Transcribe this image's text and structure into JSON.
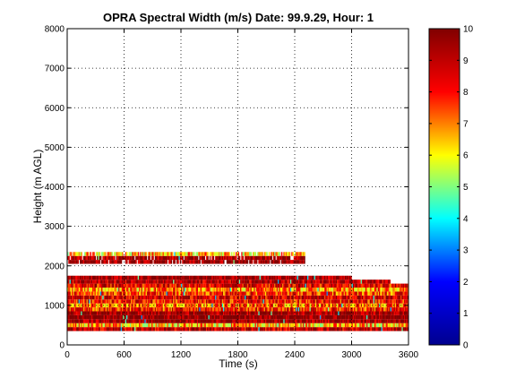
{
  "chart_data": {
    "type": "heatmap",
    "title": "OPRA Spectral Width (m/s)  Date: 99.9.29, Hour: 1",
    "xlabel": "Time (s)",
    "ylabel": "Height (m AGL)",
    "xlim": [
      0,
      3600
    ],
    "ylim": [
      0,
      8000
    ],
    "xticks": [
      "0",
      "600",
      "1200",
      "1800",
      "2400",
      "3000",
      "3600"
    ],
    "yticks": [
      "0",
      "1000",
      "2000",
      "3000",
      "4000",
      "5000",
      "6000",
      "7000",
      "8000"
    ],
    "grid": true,
    "colorbar": {
      "range": [
        0,
        10
      ],
      "ticks": [
        "0",
        "1",
        "2",
        "3",
        "4",
        "5",
        "6",
        "7",
        "8",
        "9",
        "10"
      ],
      "colormap": "jet"
    },
    "colormap_stops": [
      "#00008f",
      "#0000ff",
      "#00ffff",
      "#ffff00",
      "#ff0000",
      "#800000"
    ],
    "layers": [
      {
        "height_m": 400,
        "typical_width_ms": 9.0,
        "coverage": [
          0,
          3600
        ]
      },
      {
        "height_m": 500,
        "typical_width_ms": 6.5,
        "coverage": [
          0,
          3600
        ]
      },
      {
        "height_m": 600,
        "typical_width_ms": 9.6,
        "coverage": [
          0,
          3600
        ]
      },
      {
        "height_m": 700,
        "typical_width_ms": 9.8,
        "coverage": [
          0,
          3600
        ]
      },
      {
        "height_m": 800,
        "typical_width_ms": 9.5,
        "coverage": [
          0,
          3600
        ]
      },
      {
        "height_m": 900,
        "typical_width_ms": 8.0,
        "coverage": [
          0,
          3600
        ]
      },
      {
        "height_m": 1000,
        "typical_width_ms": 7.2,
        "coverage": [
          0,
          3600
        ]
      },
      {
        "height_m": 1100,
        "typical_width_ms": 8.2,
        "coverage": [
          0,
          3600
        ]
      },
      {
        "height_m": 1200,
        "typical_width_ms": 8.8,
        "coverage": [
          0,
          3600
        ]
      },
      {
        "height_m": 1300,
        "typical_width_ms": 7.8,
        "coverage": [
          0,
          3600
        ]
      },
      {
        "height_m": 1400,
        "typical_width_ms": 7.0,
        "coverage": [
          0,
          3600
        ]
      },
      {
        "height_m": 1500,
        "typical_width_ms": 8.5,
        "coverage": [
          0,
          3600
        ]
      },
      {
        "height_m": 1600,
        "typical_width_ms": 9.2,
        "coverage": [
          0,
          3400
        ]
      },
      {
        "height_m": 1700,
        "typical_width_ms": 9.6,
        "coverage": [
          0,
          3000
        ]
      },
      {
        "height_m": 2100,
        "typical_width_ms": 9.8,
        "coverage": [
          0,
          2500
        ]
      },
      {
        "height_m": 2200,
        "typical_width_ms": 9.5,
        "coverage": [
          0,
          2500
        ]
      },
      {
        "height_m": 2300,
        "typical_width_ms": 6.5,
        "coverage": [
          0,
          2500
        ]
      }
    ]
  }
}
